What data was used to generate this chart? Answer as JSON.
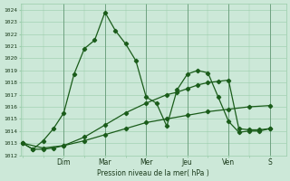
{
  "background_color": "#cce8d8",
  "grid_color": "#99ccaa",
  "line_color": "#1a5c1a",
  "marker_color": "#1a5c1a",
  "ylabel": "Pression niveau de la mer( hPa )",
  "ylim": [
    1012,
    1024.5
  ],
  "yticks": [
    1012,
    1013,
    1014,
    1015,
    1016,
    1017,
    1018,
    1019,
    1020,
    1021,
    1022,
    1023,
    1024
  ],
  "x_day_labels": [
    "Dim",
    "Mar",
    "Mer",
    "Jeu",
    "Ven",
    "S"
  ],
  "x_day_positions": [
    2,
    4,
    6,
    8,
    10,
    12
  ],
  "xlim": [
    -0.1,
    12.8
  ],
  "line1_x": [
    0,
    0.5,
    1,
    1.5,
    2,
    2.5,
    3,
    3.5,
    4,
    4.5,
    5,
    5.5,
    6,
    6.5,
    7,
    7.5,
    8,
    8.5,
    9,
    9.5,
    10,
    10.5,
    11,
    11.5,
    12
  ],
  "line1_y": [
    1013.0,
    1012.5,
    1013.2,
    1014.2,
    1015.5,
    1018.7,
    1020.8,
    1021.5,
    1023.8,
    1022.3,
    1021.2,
    1019.8,
    1016.8,
    1016.3,
    1014.4,
    1017.4,
    1018.7,
    1019.0,
    1018.8,
    1016.8,
    1014.8,
    1013.9,
    1014.0,
    1014.0,
    1014.2
  ],
  "line2_x": [
    0,
    0.5,
    1,
    1.5,
    2,
    3,
    4,
    5,
    6,
    7,
    7.5,
    8,
    8.5,
    9,
    9.5,
    10,
    10.5,
    11,
    11.5,
    12
  ],
  "line2_y": [
    1013.0,
    1012.5,
    1012.5,
    1012.6,
    1012.8,
    1013.5,
    1014.5,
    1015.5,
    1016.3,
    1017.0,
    1017.2,
    1017.5,
    1017.8,
    1018.0,
    1018.1,
    1018.2,
    1014.2,
    1014.1,
    1014.1,
    1014.2
  ],
  "line3_x": [
    0,
    1,
    2,
    3,
    4,
    5,
    6,
    7,
    8,
    9,
    10,
    11,
    12
  ],
  "line3_y": [
    1013.0,
    1012.6,
    1012.8,
    1013.2,
    1013.7,
    1014.2,
    1014.7,
    1015.0,
    1015.3,
    1015.6,
    1015.8,
    1016.0,
    1016.1
  ]
}
